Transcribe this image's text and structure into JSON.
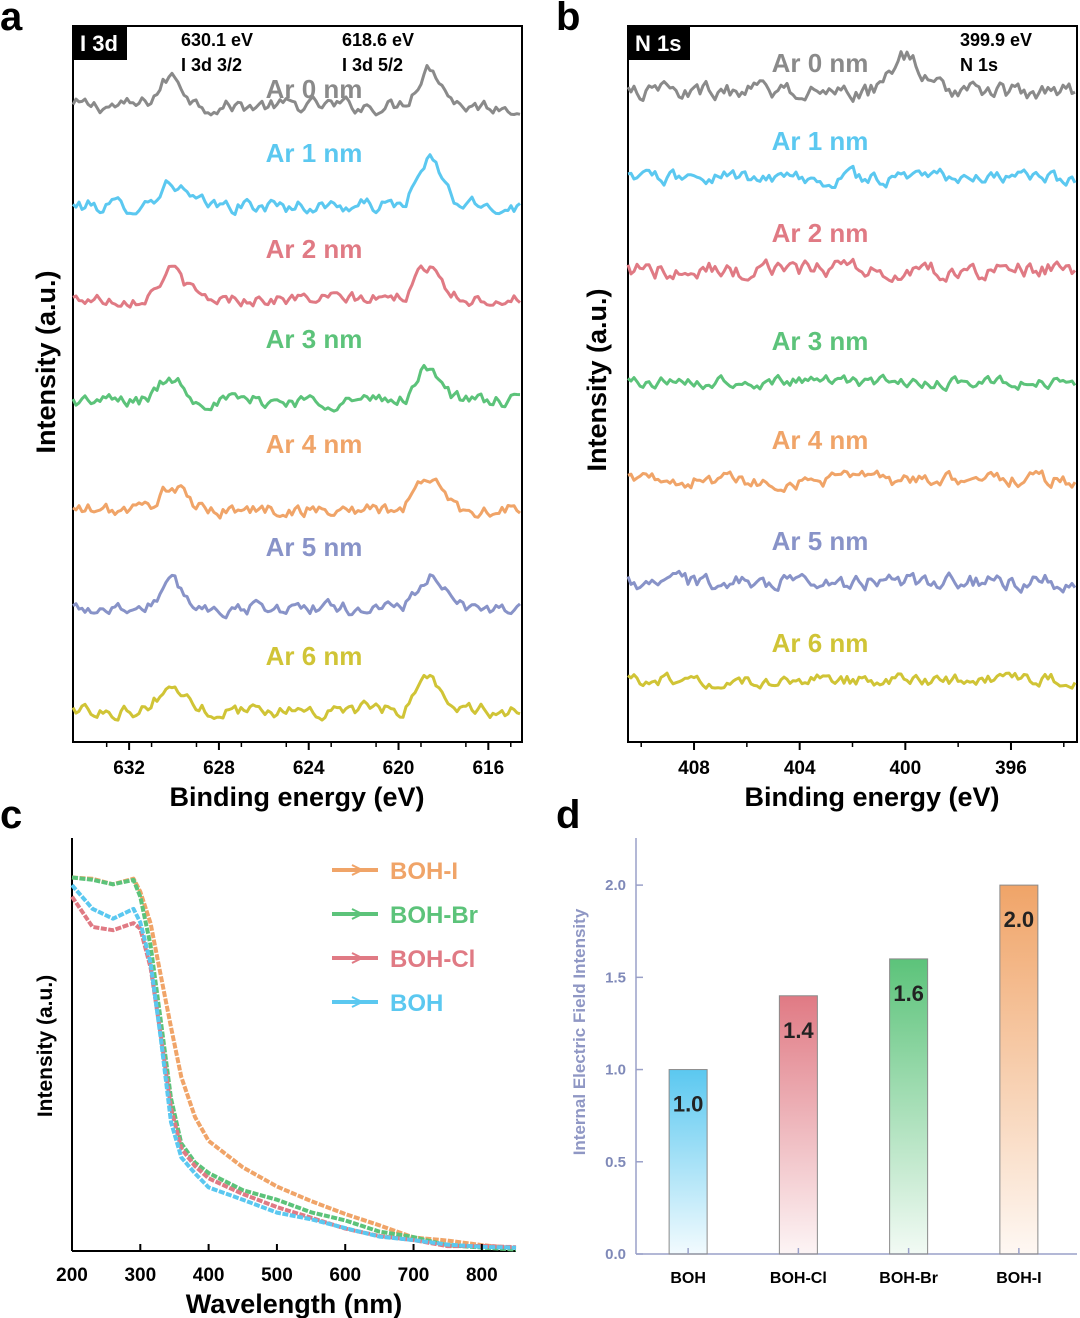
{
  "panels": {
    "a": {
      "letter": "a",
      "tag": "I 3d",
      "xlabel": "Binding energy (eV)",
      "ylabel": "Intensity (a.u.)",
      "annotations": [
        {
          "energy": "630.1 eV",
          "line": "I 3d 3/2"
        },
        {
          "energy": "618.6 eV",
          "line": "I 3d 5/2"
        }
      ]
    },
    "b": {
      "letter": "b",
      "tag": "N 1s",
      "xlabel": "Binding energy (eV)",
      "ylabel": "Intensity (a.u.)",
      "annotations": [
        {
          "energy": "399.9 eV",
          "line": "N 1s"
        }
      ]
    },
    "c": {
      "letter": "c",
      "xlabel": "Wavelength (nm)",
      "ylabel": "Intensity (a.u.)"
    },
    "d": {
      "letter": "d",
      "ylabel": "Internal Electric Field Intensity"
    }
  },
  "chart_data": [
    {
      "type": "line",
      "panel": "a",
      "title": "",
      "xlabel": "Binding energy (eV)",
      "ylabel": "Intensity (a.u.)",
      "xlim": [
        634.5,
        614.5
      ],
      "x_ticks": [
        632,
        628,
        624,
        620,
        616
      ],
      "y_ticks": [],
      "peaks_eV": [
        630.1,
        618.6
      ],
      "series": [
        {
          "name": "Ar 0 nm",
          "color": "#8a8a8a",
          "peak_heights": [
            0.55,
            0.75
          ],
          "noise": 0.15
        },
        {
          "name": "Ar 1 nm",
          "color": "#5bc8f0",
          "peak_heights": [
            0.45,
            0.85
          ],
          "noise": 0.15
        },
        {
          "name": "Ar 2 nm",
          "color": "#e07a84",
          "peak_heights": [
            0.55,
            0.65
          ],
          "noise": 0.13
        },
        {
          "name": "Ar 3 nm",
          "color": "#5cc37a",
          "peak_heights": [
            0.45,
            0.65
          ],
          "noise": 0.14
        },
        {
          "name": "Ar 4 nm",
          "color": "#f0a468",
          "peak_heights": [
            0.45,
            0.65
          ],
          "noise": 0.14
        },
        {
          "name": "Ar 5 nm",
          "color": "#8893c8",
          "peak_heights": [
            0.45,
            0.6
          ],
          "noise": 0.14
        },
        {
          "name": "Ar 6 nm",
          "color": "#d0c436",
          "peak_heights": [
            0.45,
            0.6
          ],
          "noise": 0.14
        }
      ]
    },
    {
      "type": "line",
      "panel": "b",
      "title": "",
      "xlabel": "Binding energy (eV)",
      "ylabel": "Intensity (a.u.)",
      "xlim": [
        410.5,
        393.5
      ],
      "x_ticks": [
        408,
        404,
        400,
        396
      ],
      "y_ticks": [],
      "peaks_eV": [
        399.9
      ],
      "series": [
        {
          "name": "Ar 0 nm",
          "color": "#8a8a8a",
          "peak_heights": [
            0.7
          ],
          "noise": 0.18
        },
        {
          "name": "Ar 1 nm",
          "color": "#5bc8f0",
          "peak_heights": [
            0
          ],
          "noise": 0.15
        },
        {
          "name": "Ar 2 nm",
          "color": "#e07a84",
          "peak_heights": [
            0
          ],
          "noise": 0.18
        },
        {
          "name": "Ar 3 nm",
          "color": "#5cc37a",
          "peak_heights": [
            0
          ],
          "noise": 0.12
        },
        {
          "name": "Ar 4 nm",
          "color": "#f0a468",
          "peak_heights": [
            0
          ],
          "noise": 0.15
        },
        {
          "name": "Ar 5 nm",
          "color": "#8893c8",
          "peak_heights": [
            0
          ],
          "noise": 0.17
        },
        {
          "name": "Ar 6 nm",
          "color": "#d0c436",
          "peak_heights": [
            0
          ],
          "noise": 0.13
        }
      ]
    },
    {
      "type": "line",
      "panel": "c",
      "title": "",
      "xlabel": "Wavelength (nm)",
      "ylabel": "Intensity (a.u.)",
      "xlim": [
        200,
        850
      ],
      "x_ticks": [
        200,
        300,
        400,
        500,
        600,
        700,
        800
      ],
      "ylim": [
        0,
        1
      ],
      "legend": "top-right",
      "x": [
        200,
        230,
        260,
        290,
        300,
        315,
        330,
        345,
        360,
        380,
        400,
        450,
        500,
        550,
        600,
        650,
        700,
        750,
        800,
        850
      ],
      "series": [
        {
          "name": "BOH-I",
          "color": "#f0a468",
          "values": [
            0.98,
            0.97,
            0.96,
            0.97,
            0.94,
            0.86,
            0.72,
            0.58,
            0.45,
            0.35,
            0.29,
            0.22,
            0.17,
            0.13,
            0.095,
            0.065,
            0.04,
            0.025,
            0.015,
            0.01
          ]
        },
        {
          "name": "BOH-Br",
          "color": "#5cc37a",
          "values": [
            0.98,
            0.97,
            0.96,
            0.97,
            0.92,
            0.8,
            0.6,
            0.4,
            0.28,
            0.23,
            0.2,
            0.16,
            0.13,
            0.1,
            0.075,
            0.05,
            0.032,
            0.02,
            0.012,
            0.008
          ]
        },
        {
          "name": "BOH-Cl",
          "color": "#e07a84",
          "values": [
            0.93,
            0.85,
            0.84,
            0.86,
            0.84,
            0.74,
            0.56,
            0.37,
            0.27,
            0.22,
            0.19,
            0.15,
            0.115,
            0.085,
            0.06,
            0.04,
            0.025,
            0.015,
            0.009,
            0.006
          ]
        },
        {
          "name": "BOH",
          "color": "#5bc8f0",
          "values": [
            0.96,
            0.89,
            0.87,
            0.89,
            0.86,
            0.75,
            0.55,
            0.34,
            0.24,
            0.2,
            0.17,
            0.135,
            0.105,
            0.08,
            0.058,
            0.04,
            0.026,
            0.016,
            0.01,
            0.006
          ]
        }
      ]
    },
    {
      "type": "bar",
      "panel": "d",
      "title": "",
      "xlabel": "",
      "ylabel": "Internal Electric Field Intensity",
      "ylim": [
        0,
        2.25
      ],
      "y_ticks": [
        "0.0",
        "0.5",
        "1.0",
        "1.5",
        "2.0"
      ],
      "categories": [
        "BOH",
        "BOH-Cl",
        "BOH-Br",
        "BOH-I"
      ],
      "values": [
        1.0,
        1.4,
        1.6,
        2.0
      ],
      "value_labels": [
        "1.0",
        "1.4",
        "1.6",
        "2.0"
      ],
      "colors": [
        "#5bc8f0",
        "#e07a84",
        "#5cc37a",
        "#f0a468"
      ]
    }
  ]
}
